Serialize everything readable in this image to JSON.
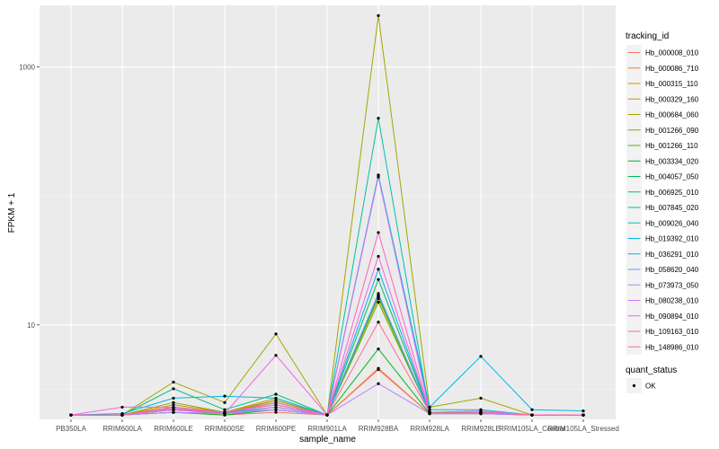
{
  "chart_data": {
    "type": "line",
    "xlabel": "sample_name",
    "ylabel": "FPKM + 1",
    "y_scale": "log10",
    "ylim": [
      1.85,
      3000
    ],
    "y_ticks": [
      10,
      1000
    ],
    "y_tick_labels": [
      "10",
      "1000"
    ],
    "grid": true,
    "legend_position": "right",
    "categories": [
      "PB350LA",
      "RRIM600LA",
      "RRIM600LE",
      "RRIM600SE",
      "RRIM600PE",
      "RRIM901LA",
      "RRIM928BA",
      "RRIM928LA",
      "RRIM928LE",
      "RRIM105LA_Control",
      "RRIM105LA_Stressed"
    ],
    "legend_title": "tracking_id",
    "series": [
      {
        "name": "Hb_000008_010",
        "color": "#F8766D",
        "values": [
          2,
          2,
          2.1,
          2,
          2.1,
          2,
          4.5,
          2.05,
          2.05,
          2,
          2
        ]
      },
      {
        "name": "Hb_000086_710",
        "color": "#F07F3B",
        "values": [
          2,
          2,
          2.2,
          2.05,
          2.5,
          2,
          4.6,
          2.05,
          2.1,
          2,
          2
        ]
      },
      {
        "name": "Hb_000315_110",
        "color": "#E38900",
        "values": [
          2,
          2,
          2.3,
          2.05,
          2.6,
          2,
          17.0,
          2.1,
          2.1,
          2,
          2
        ]
      },
      {
        "name": "Hb_000329_160",
        "color": "#CF9400",
        "values": [
          2,
          2,
          2.4,
          2.1,
          2.7,
          2,
          16.0,
          2.1,
          2.1,
          2,
          2
        ]
      },
      {
        "name": "Hb_000684_060",
        "color": "#A3A500",
        "values": [
          2,
          2,
          3.6,
          2.5,
          8.5,
          2,
          2500,
          2.3,
          2.7,
          2,
          2
        ]
      },
      {
        "name": "Hb_001266_090",
        "color": "#85AD00",
        "values": [
          2,
          2,
          2.5,
          2.1,
          2.6,
          2,
          16.5,
          2.1,
          2.1,
          2,
          2
        ]
      },
      {
        "name": "Hb_001266_110",
        "color": "#5EB300",
        "values": [
          2,
          2,
          2.2,
          2.05,
          2.3,
          2,
          15.0,
          2.1,
          2.1,
          2,
          2
        ]
      },
      {
        "name": "Hb_003334_020",
        "color": "#00B81F",
        "values": [
          2,
          2,
          2.1,
          2,
          2.2,
          2,
          6.5,
          2.05,
          2.05,
          2,
          2
        ]
      },
      {
        "name": "Hb_004057_050",
        "color": "#00BC59",
        "values": [
          2,
          2,
          2.3,
          2.1,
          2.4,
          2,
          22.5,
          2.1,
          2.1,
          2,
          2
        ]
      },
      {
        "name": "Hb_006925_010",
        "color": "#00BF7D",
        "values": [
          2,
          2,
          3.2,
          2.2,
          2.9,
          2,
          16.8,
          2.1,
          2.1,
          2,
          2
        ]
      },
      {
        "name": "Hb_007845_020",
        "color": "#00C0A2",
        "values": [
          2,
          2,
          2.2,
          2.1,
          2.2,
          2,
          400,
          2.1,
          2.1,
          2,
          2
        ]
      },
      {
        "name": "Hb_009026_040",
        "color": "#00BFC4",
        "values": [
          2,
          2,
          2.2,
          2.1,
          2.3,
          2,
          145,
          2.2,
          2.2,
          2,
          2
        ]
      },
      {
        "name": "Hb_019392_010",
        "color": "#00B9E3",
        "values": [
          2,
          2.05,
          2.7,
          2.8,
          2.7,
          2,
          145,
          2.3,
          5.7,
          2.2,
          2.15
        ]
      },
      {
        "name": "Hb_036291_010",
        "color": "#00B0F6",
        "values": [
          2,
          2,
          2.2,
          2.1,
          2.5,
          2,
          27.0,
          2.1,
          2.1,
          2,
          2
        ]
      },
      {
        "name": "Hb_058620_040",
        "color": "#619CFF",
        "values": [
          2,
          2,
          2.1,
          2.05,
          2.2,
          2,
          17.5,
          2.05,
          2.05,
          2,
          2
        ]
      },
      {
        "name": "Hb_073973_050",
        "color": "#B983FF",
        "values": [
          2,
          2,
          2.1,
          2.05,
          2.2,
          2,
          3.5,
          2.05,
          2.05,
          2,
          2
        ]
      },
      {
        "name": "Hb_080238_010",
        "color": "#DB72FB",
        "values": [
          2,
          2,
          2.25,
          2.05,
          2.3,
          2,
          140,
          2.1,
          2.15,
          2,
          2
        ]
      },
      {
        "name": "Hb_090894_010",
        "color": "#F564E3",
        "values": [
          2,
          2.3,
          2.3,
          2.05,
          5.8,
          2,
          34.0,
          2.1,
          2.1,
          2,
          2
        ]
      },
      {
        "name": "Hb_109163_010",
        "color": "#FF61C3",
        "values": [
          2,
          2,
          2.2,
          2.1,
          2.4,
          2,
          52.0,
          2.1,
          2.1,
          2,
          2
        ]
      },
      {
        "name": "Hb_148986_010",
        "color": "#FF6C91",
        "values": [
          2,
          2,
          2.3,
          2.1,
          2.5,
          2,
          10.5,
          2.1,
          2.1,
          2,
          2
        ]
      }
    ],
    "quant_legend": {
      "title": "quant_status",
      "entries": [
        "OK"
      ]
    }
  }
}
